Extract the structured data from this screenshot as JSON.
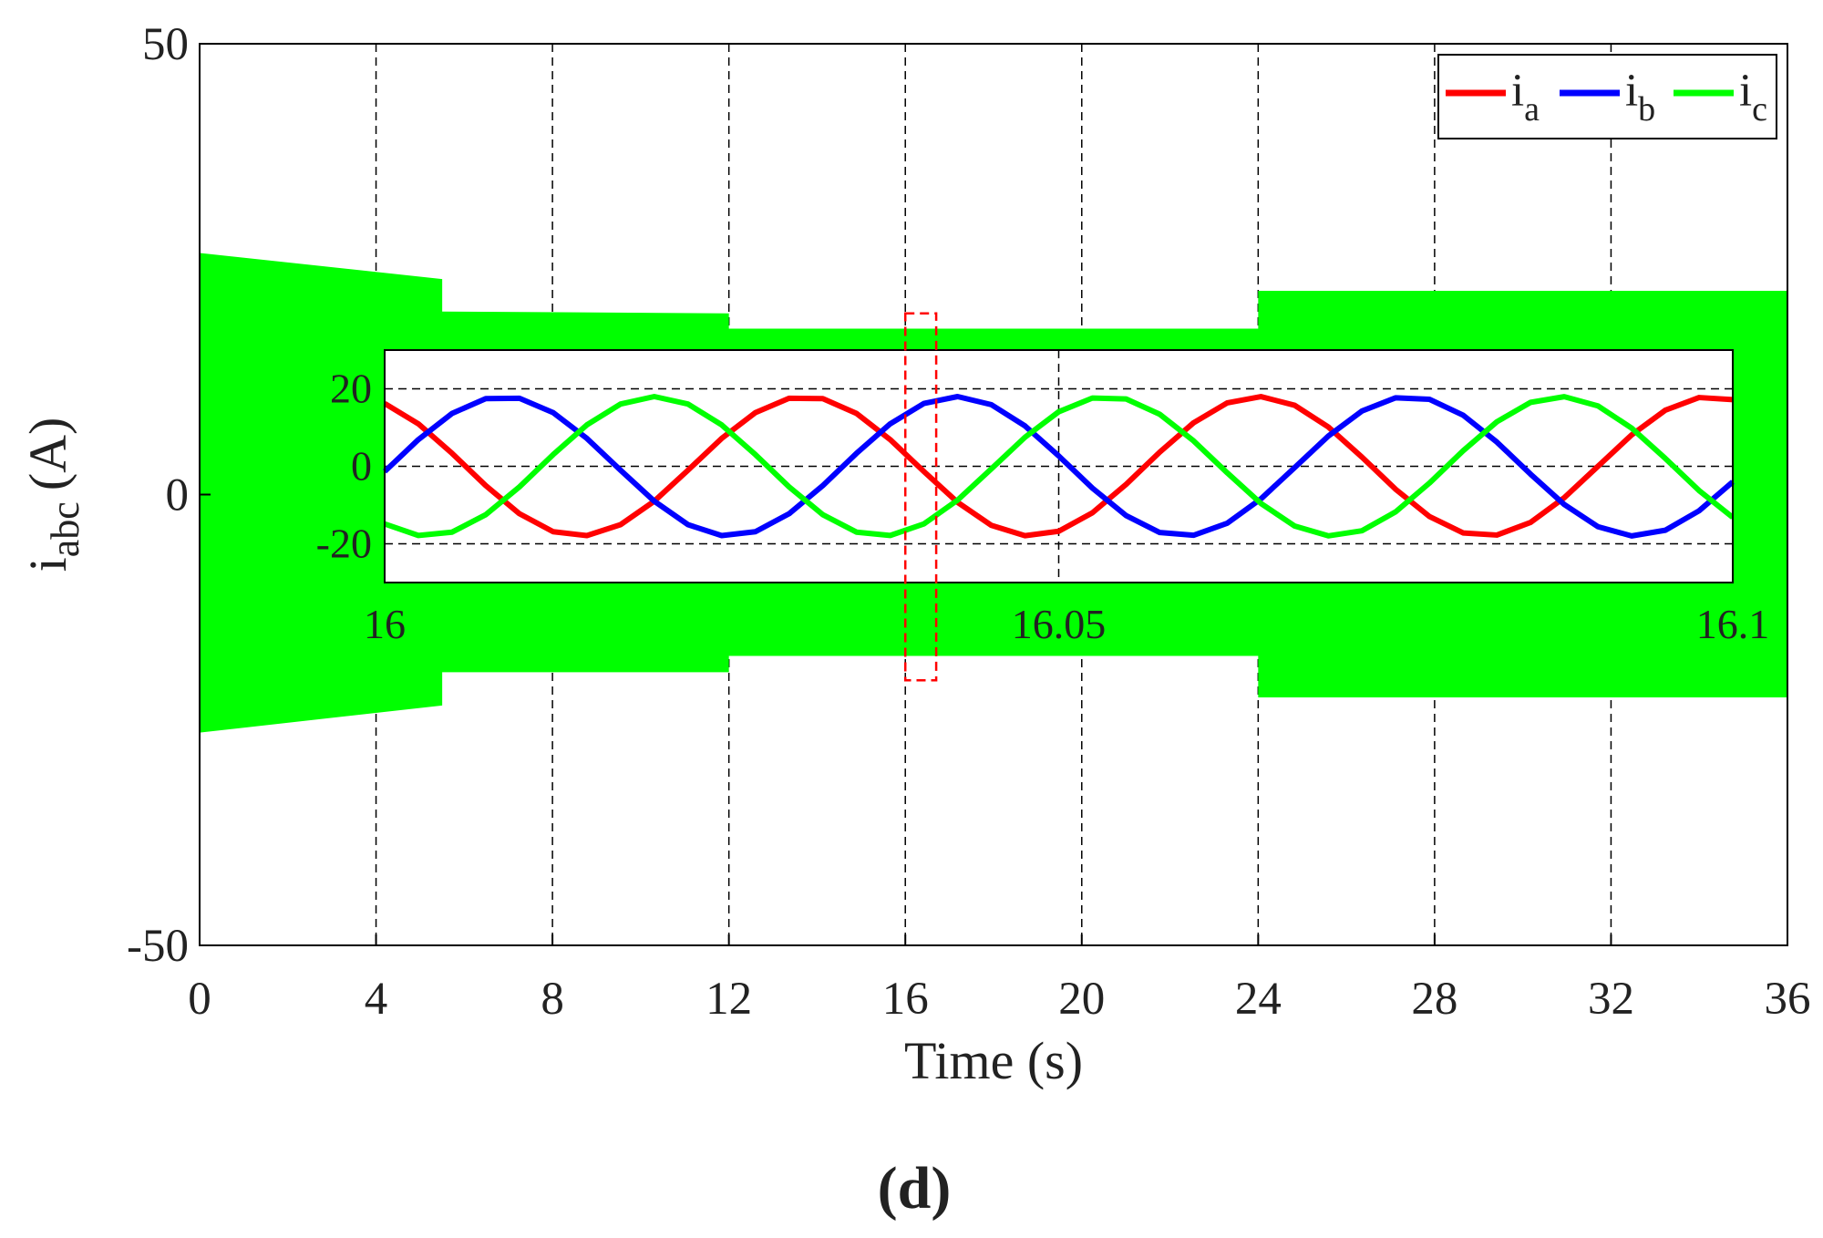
{
  "chart_data": [
    {
      "type": "envelope",
      "title": "(d)",
      "xlabel": "Time (s)",
      "ylabel": {
        "text": "i",
        "subscript": "abc",
        "unit": "(A)"
      },
      "xlim": [
        0,
        36
      ],
      "xticks": [
        0,
        4,
        8,
        12,
        16,
        20,
        24,
        28,
        32,
        36
      ],
      "ylim": [
        -50,
        50
      ],
      "yticks": [
        -50,
        0,
        50
      ],
      "grid": "x",
      "series": [
        {
          "color": "#00ff00",
          "x": [
            0,
            5.5,
            5.5,
            12,
            12,
            24,
            24,
            36
          ],
          "upper": [
            26.8,
            23.9,
            20.3,
            20.1,
            18.4,
            18.4,
            22.6,
            22.6
          ],
          "lower": [
            -26.4,
            -23.4,
            -19.7,
            -19.7,
            -17.9,
            -17.9,
            -22.5,
            -22.5
          ]
        }
      ],
      "zoom_box": {
        "xlim": [
          16,
          16.7
        ],
        "ylim": [
          -20.6,
          20.1
        ],
        "color": "#ff0000"
      }
    },
    {
      "type": "line",
      "legend": "upper right",
      "xlim": [
        16,
        16.1
      ],
      "xticks": [
        16,
        16.05,
        16.1
      ],
      "ylim": [
        -30,
        30
      ],
      "yticks": [
        -20,
        0,
        20
      ],
      "grid": "both",
      "x": [
        16,
        16.0025,
        16.005,
        16.0075,
        16.01,
        16.0125,
        16.015,
        16.0175,
        16.02,
        16.0225,
        16.025,
        16.0275,
        16.03,
        16.0325,
        16.035,
        16.0375,
        16.04,
        16.0425,
        16.045,
        16.0475,
        16.05,
        16.0525,
        16.055,
        16.0575,
        16.06,
        16.0625,
        16.065,
        16.0675,
        16.07,
        16.0725,
        16.075,
        16.0775,
        16.08,
        16.0825,
        16.085,
        16.0875,
        16.09,
        16.0925,
        16.095,
        16.0975,
        16.1
      ],
      "series": [
        {
          "name": "i",
          "subscript": "a",
          "color": "#ff0000",
          "values": [
            16.22,
            10.96,
            3.34,
            -4.98,
            -12.24,
            -16.88,
            -17.89,
            -15.06,
            -9.0,
            -1.01,
            7.2,
            13.86,
            17.55,
            17.47,
            13.65,
            6.89,
            -1.35,
            -9.29,
            -15.24,
            -17.92,
            -16.76,
            -12.0,
            -4.66,
            3.68,
            11.22,
            16.36,
            17.99,
            15.75,
            10.14,
            2.35,
            -5.95,
            -12.96,
            -17.2,
            -17.75,
            -14.48,
            -8.11,
            0,
            8.11,
            14.48,
            17.75,
            17.2
          ]
        },
        {
          "name": "i",
          "subscript": "b",
          "color": "#0000ff",
          "values": [
            -1.35,
            6.89,
            13.65,
            17.47,
            17.55,
            13.86,
            7.2,
            -1.01,
            -9.0,
            -15.06,
            -17.89,
            -16.88,
            -12.24,
            -4.98,
            3.34,
            10.96,
            16.22,
            18.0,
            15.91,
            10.42,
            2.68,
            -5.63,
            -12.73,
            -17.1,
            -17.8,
            -14.68,
            -8.41,
            -0.34,
            7.81,
            14.28,
            17.69,
            17.3,
            13.19,
            6.26,
            -2.02,
            -9.86,
            -15.59,
            -17.97,
            -16.5,
            -11.49,
            -4.01
          ]
        },
        {
          "name": "i",
          "subscript": "c",
          "color": "#00ff00",
          "values": [
            -14.87,
            -17.85,
            -16.99,
            -12.49,
            -5.3,
            3.02,
            10.69,
            16.07,
            18.0,
            16.07,
            10.69,
            3.02,
            -5.3,
            -12.49,
            -16.99,
            -17.85,
            -14.87,
            -8.71,
            -0.67,
            7.5,
            14.07,
            17.62,
            17.39,
            13.42,
            6.58,
            -1.68,
            -9.58,
            -15.42,
            -17.95,
            -16.63,
            -11.74,
            -4.33,
            4.01,
            11.49,
            16.5,
            17.97,
            15.59,
            9.86,
            2.02,
            -6.26,
            -13.19
          ]
        }
      ]
    }
  ]
}
